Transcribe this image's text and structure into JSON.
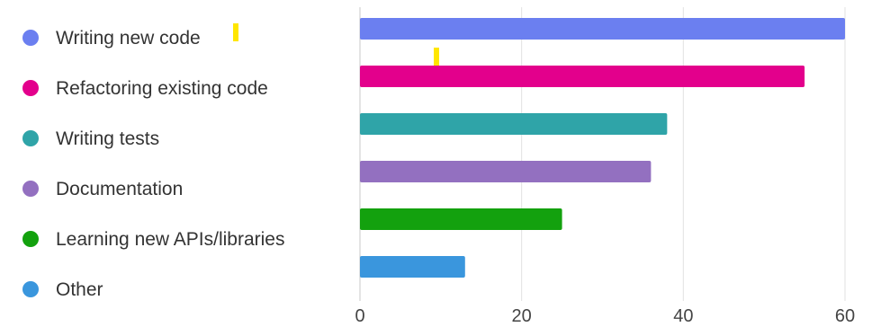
{
  "chart_data": {
    "type": "bar",
    "orientation": "horizontal",
    "title": "",
    "xlabel": "",
    "ylabel": "",
    "categories": [
      "Writing new code",
      "Refactoring existing code",
      "Writing tests",
      "Documentation",
      "Learning new APIs/libraries",
      "Other"
    ],
    "values": [
      60,
      55,
      38,
      36,
      25,
      13
    ],
    "colors": [
      "#6b7ff0",
      "#e3008c",
      "#2fa4a8",
      "#9370c0",
      "#13a10e",
      "#3a96dd"
    ],
    "xlim": [
      0,
      60
    ],
    "xticks": [
      0,
      20,
      40,
      60
    ],
    "grid": true,
    "legend_position": "left",
    "legend_marker": "circle",
    "annotations": [
      {
        "type": "marker",
        "color": "#ffe600",
        "near": "Writing new code legend label"
      },
      {
        "type": "marker",
        "color": "#ffe600",
        "near": "Refactoring existing code bar"
      }
    ]
  }
}
